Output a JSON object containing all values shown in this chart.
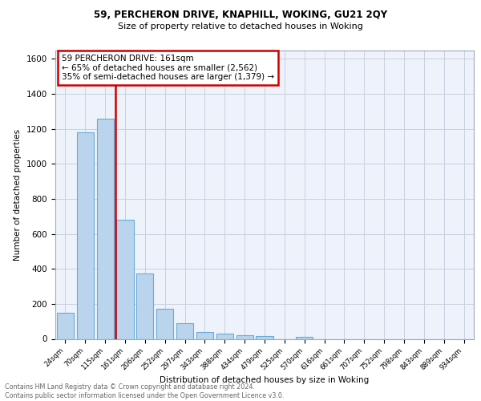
{
  "title1": "59, PERCHERON DRIVE, KNAPHILL, WOKING, GU21 2QY",
  "title2": "Size of property relative to detached houses in Woking",
  "xlabel": "Distribution of detached houses by size in Woking",
  "ylabel": "Number of detached properties",
  "bar_labels": [
    "24sqm",
    "70sqm",
    "115sqm",
    "161sqm",
    "206sqm",
    "252sqm",
    "297sqm",
    "343sqm",
    "388sqm",
    "434sqm",
    "479sqm",
    "525sqm",
    "570sqm",
    "616sqm",
    "661sqm",
    "707sqm",
    "752sqm",
    "798sqm",
    "843sqm",
    "889sqm",
    "934sqm"
  ],
  "bar_values": [
    150,
    1180,
    1260,
    680,
    375,
    170,
    90,
    40,
    32,
    20,
    15,
    0,
    12,
    0,
    0,
    0,
    0,
    0,
    0,
    0,
    0
  ],
  "property_line_x": 2.5,
  "annotation_text": "59 PERCHERON DRIVE: 161sqm\n← 65% of detached houses are smaller (2,562)\n35% of semi-detached houses are larger (1,379) →",
  "bar_color": "#bad4ee",
  "bar_edge_color": "#6aaad4",
  "line_color": "#cc0000",
  "annotation_box_color": "#cc0000",
  "annotation_bg": "#ffffff",
  "footer": "Contains HM Land Registry data © Crown copyright and database right 2024.\nContains public sector information licensed under the Open Government Licence v3.0.",
  "ylim": [
    0,
    1650
  ],
  "yticks": [
    0,
    200,
    400,
    600,
    800,
    1000,
    1200,
    1400,
    1600
  ],
  "background_color": "#eef2fa",
  "grid_color": "#c8d0e0"
}
